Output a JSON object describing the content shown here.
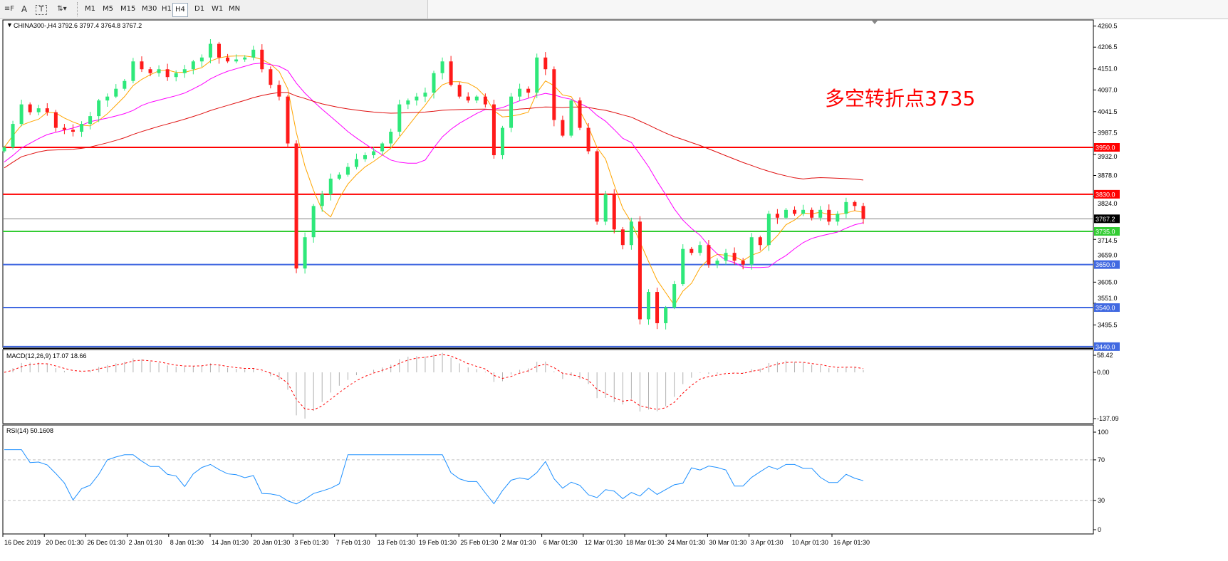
{
  "toolbar": {
    "tools": [
      {
        "name": "fibo-fan-icon",
        "glyph": "≡F"
      },
      {
        "name": "text-icon",
        "glyph": "A"
      },
      {
        "name": "text-label-icon",
        "glyph": "T"
      },
      {
        "name": "arrows-icon",
        "glyph": "⇅▾"
      }
    ],
    "timeframes": [
      "M1",
      "M5",
      "M15",
      "M30",
      "H1",
      "H4",
      "D1",
      "W1",
      "MN"
    ],
    "active_timeframe": "H4"
  },
  "chart": {
    "header": "CHINA300-,H4  3792.6 3797.4 3764.8 3767.2",
    "annotation": "多空转折点3735",
    "annotation_color": "#ff0000",
    "price_ticks": [
      "4260.5",
      "4206.5",
      "4151.0",
      "4097.0",
      "4041.5",
      "3987.5",
      "3932.0",
      "3878.0",
      "3824.0",
      "3714.5",
      "3659.0",
      "3605.0",
      "3551.0",
      "3495.5"
    ],
    "levels": [
      {
        "price": 3950.0,
        "label": "3950.0",
        "color": "#ff0000"
      },
      {
        "price": 3830.0,
        "label": "3830.0",
        "color": "#ff0000"
      },
      {
        "price": 3767.2,
        "label": "3767.2",
        "color": "#808080",
        "badge": "#000000"
      },
      {
        "price": 3735.0,
        "label": "3735.0",
        "color": "#33cc33"
      },
      {
        "price": 3650.0,
        "label": "3650.0",
        "color": "#4169e1"
      },
      {
        "price": 3540.0,
        "label": "3540.0",
        "color": "#4169e1"
      },
      {
        "price": 3440.0,
        "label": "3440.0",
        "color": "#4169e1"
      }
    ],
    "colors": {
      "bull": "#2ee87a",
      "bear": "#ff1a1a",
      "ma_fast": "#ffa500",
      "ma_mid": "#ff00ff",
      "ma_slow": "#e01010"
    },
    "closes": [
      3950,
      4010,
      4060,
      4040,
      4050,
      4040,
      4000,
      3995,
      3990,
      4010,
      4030,
      4070,
      4080,
      4100,
      4120,
      4170,
      4150,
      4140,
      4150,
      4130,
      4140,
      4150,
      4170,
      4180,
      4215,
      4180,
      4170,
      4175,
      4180,
      4200,
      4150,
      4110,
      4080,
      3960,
      3640,
      3720,
      3800,
      3830,
      3870,
      3880,
      3900,
      3920,
      3930,
      3940,
      3960,
      3990,
      4060,
      4070,
      4080,
      4090,
      4140,
      4170,
      4110,
      4080,
      4070,
      4080,
      4060,
      3930,
      4000,
      4080,
      4100,
      4090,
      4180,
      4150,
      4020,
      3980,
      4070,
      4000,
      3940,
      3760,
      3830,
      3740,
      3700,
      3760,
      3510,
      3580,
      3500,
      3540,
      3600,
      3690,
      3680,
      3700,
      3650,
      3660,
      3680,
      3660,
      3650,
      3720,
      3700,
      3780,
      3770,
      3790,
      3780,
      3790,
      3770,
      3790,
      3760,
      3780,
      3810,
      3800,
      3767.2
    ]
  },
  "macd": {
    "label": "MACD(12,26,9) 17.07 18.66",
    "ticks": [
      "58.42",
      "0.00",
      "-137.09"
    ]
  },
  "rsi": {
    "label": "RSI(14) 50.1608",
    "ticks": [
      "100",
      "70",
      "30",
      "0"
    ]
  },
  "time_axis": [
    "16 Dec 2019",
    "20 Dec 01:30",
    "26 Dec 01:30",
    "2 Jan 01:30",
    "8 Jan 01:30",
    "14 Jan 01:30",
    "20 Jan 01:30",
    "3 Feb 01:30",
    "7 Feb 01:30",
    "13 Feb 01:30",
    "19 Feb 01:30",
    "25 Feb 01:30",
    "2 Mar 01:30",
    "6 Mar 01:30",
    "12 Mar 01:30",
    "18 Mar 01:30",
    "24 Mar 01:30",
    "30 Mar 01:30",
    "3 Apr 01:30",
    "10 Apr 01:30",
    "16 Apr 01:30"
  ]
}
